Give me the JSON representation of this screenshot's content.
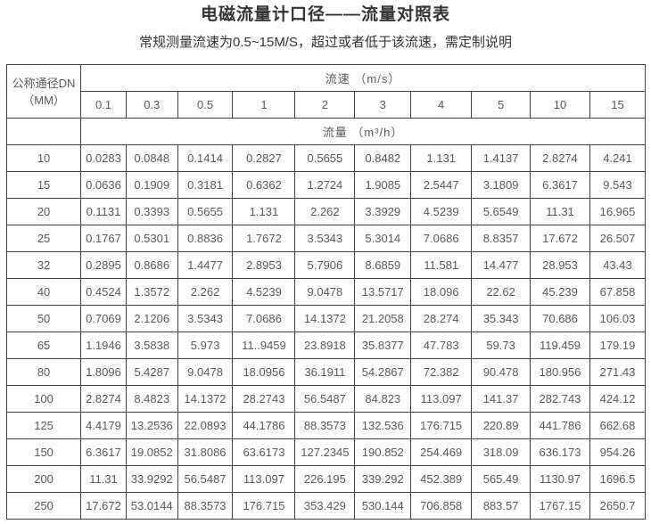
{
  "title": "电磁流量计口径——流量对照表",
  "subtitle": "常规测量流速为0.5~15M/S，超过或者低于该流速，需定制说明",
  "table": {
    "corner_header_line1": "公称通径DN",
    "corner_header_line2": "（MM）",
    "velocity_header": "流速 （m/s）",
    "flow_header": "流量 （m³/h）",
    "velocity_columns": [
      "0.1",
      "0.3",
      "0.5",
      "1",
      "2",
      "3",
      "4",
      "5",
      "10",
      "15"
    ],
    "rows": [
      {
        "dn": "10",
        "values": [
          "0.0283",
          "0.0848",
          "0.1414",
          "0.2827",
          "0.5655",
          "0.8482",
          "1.131",
          "1.4137",
          "2.8274",
          "4.241"
        ]
      },
      {
        "dn": "15",
        "values": [
          "0.0636",
          "0.1909",
          "0.3181",
          "0.6362",
          "1.2724",
          "1.9085",
          "2.5447",
          "3.1809",
          "6.3617",
          "9.543"
        ]
      },
      {
        "dn": "20",
        "values": [
          "0.1131",
          "0.3393",
          "0.5655",
          "1.131",
          "2.262",
          "3.3929",
          "4.5239",
          "5.6549",
          "11.31",
          "16.965"
        ]
      },
      {
        "dn": "25",
        "values": [
          "0.1767",
          "0.5301",
          "0.8836",
          "1.7672",
          "3.5343",
          "5.3014",
          "7.0686",
          "8.8357",
          "17.672",
          "26.507"
        ]
      },
      {
        "dn": "32",
        "values": [
          "0.2895",
          "0.8686",
          "1.4477",
          "2.8953",
          "5.7906",
          "8.6859",
          "11.581",
          "14.477",
          "28.953",
          "43.43"
        ]
      },
      {
        "dn": "40",
        "values": [
          "0.4524",
          "1.3572",
          "2.262",
          "4.5239",
          "9.0478",
          "13.5717",
          "18.096",
          "22.62",
          "45.239",
          "67.858"
        ]
      },
      {
        "dn": "50",
        "values": [
          "0.7069",
          "2.1206",
          "3.5343",
          "7.0686",
          "14.1372",
          "21.2058",
          "28.274",
          "35.343",
          "70.686",
          "106.03"
        ]
      },
      {
        "dn": "65",
        "values": [
          "1.1946",
          "3.5838",
          "5.973",
          "11..9459",
          "23.8918",
          "35.8377",
          "47.783",
          "59.73",
          "119.459",
          "179.19"
        ]
      },
      {
        "dn": "80",
        "values": [
          "1.8096",
          "5.4287",
          "9.0478",
          "18.0956",
          "36.1911",
          "54.2867",
          "72.382",
          "90.478",
          "180.956",
          "271.43"
        ]
      },
      {
        "dn": "100",
        "values": [
          "2.8274",
          "8.4823",
          "14.1372",
          "28.2743",
          "56.5487",
          "84.823",
          "113.097",
          "141.37",
          "282.743",
          "424.12"
        ]
      },
      {
        "dn": "125",
        "values": [
          "4.4179",
          "13.2536",
          "22.0893",
          "44.1786",
          "88.3573",
          "132.536",
          "176.715",
          "220.89",
          "441.786",
          "662.68"
        ]
      },
      {
        "dn": "150",
        "values": [
          "6.3617",
          "19.0852",
          "31.8086",
          "63.6173",
          "127.2345",
          "190.852",
          "254.469",
          "318.09",
          "636.173",
          "954.26"
        ]
      },
      {
        "dn": "200",
        "values": [
          "11.31",
          "33.9292",
          "56.5487",
          "113.097",
          "226.195",
          "339.292",
          "452.389",
          "565.49",
          "1130.97",
          "1696.5"
        ]
      },
      {
        "dn": "250",
        "values": [
          "17.672",
          "53.0144",
          "88.3573",
          "176.715",
          "353.429",
          "530.144",
          "706.858",
          "883.57",
          "1767.15",
          "2650.7"
        ]
      }
    ]
  },
  "colors": {
    "teal_header": "#0a9da5",
    "border_dark": "#404040",
    "title_text": "#333333",
    "cell_text": "#57585a"
  }
}
